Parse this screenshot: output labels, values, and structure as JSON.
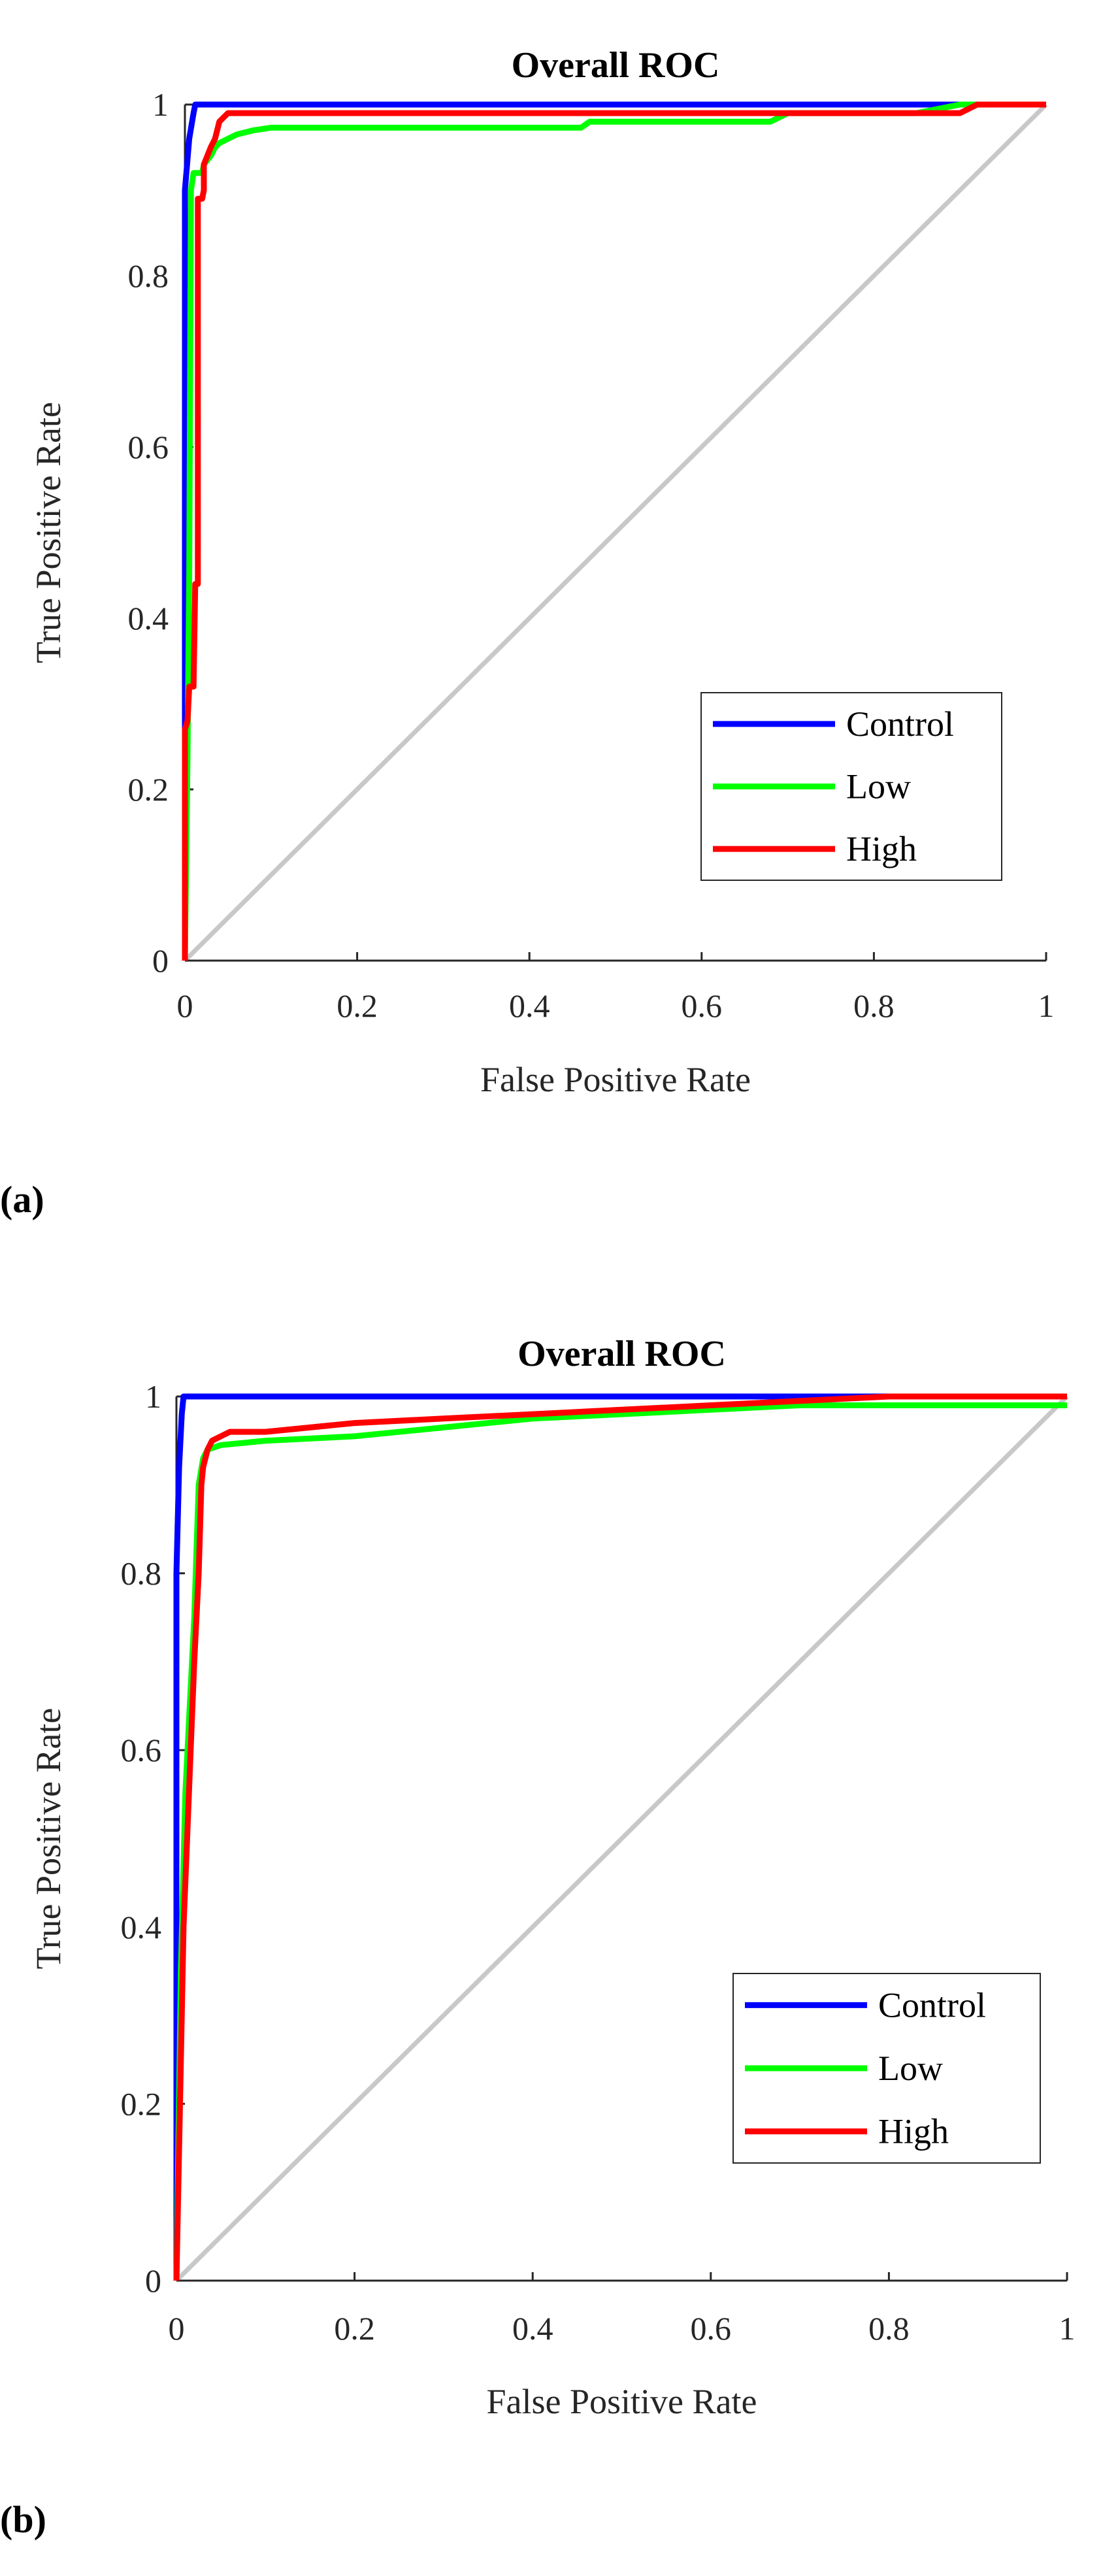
{
  "chart_data": [
    {
      "type": "line",
      "panel_label": "(a)",
      "title": "Overall ROC",
      "xlabel": "False Positive Rate",
      "ylabel": "True Positive Rate",
      "xlim": [
        0,
        1
      ],
      "ylim": [
        0,
        1
      ],
      "xticks": [
        "0",
        "0.2",
        "0.4",
        "0.6",
        "0.8",
        "1"
      ],
      "yticks": [
        "0",
        "0.2",
        "0.4",
        "0.6",
        "0.8",
        "1"
      ],
      "grid": false,
      "legend_position": "bottom-right",
      "reference_line": {
        "x": [
          0,
          1
        ],
        "y": [
          0,
          1
        ],
        "color": "#c8c8c8"
      },
      "series": [
        {
          "name": "Control",
          "color": "#0000ff",
          "x": [
            0,
            0,
            0.005,
            0.01,
            0.012,
            0.85,
            1
          ],
          "y": [
            0,
            0.9,
            0.96,
            0.99,
            1,
            1,
            1
          ]
        },
        {
          "name": "Low",
          "color": "#00ff00",
          "x": [
            0,
            0.003,
            0.005,
            0.007,
            0.01,
            0.012,
            0.02,
            0.022,
            0.03,
            0.035,
            0.04,
            0.05,
            0.06,
            0.08,
            0.1,
            0.46,
            0.47,
            0.68,
            0.7,
            0.85,
            0.9,
            1
          ],
          "y": [
            0,
            0.24,
            0.45,
            0.9,
            0.92,
            0.92,
            0.92,
            0.93,
            0.94,
            0.95,
            0.955,
            0.96,
            0.965,
            0.97,
            0.973,
            0.973,
            0.98,
            0.98,
            0.99,
            0.99,
            1,
            1
          ]
        },
        {
          "name": "High",
          "color": "#ff0000",
          "x": [
            0,
            0,
            0.003,
            0.005,
            0.008,
            0.01,
            0.012,
            0.015,
            0.015,
            0.018,
            0.02,
            0.022,
            0.022,
            0.026,
            0.03,
            0.035,
            0.04,
            0.05,
            0.06,
            0.1,
            0.5,
            0.9,
            0.92,
            1
          ],
          "y": [
            0,
            0.27,
            0.28,
            0.32,
            0.32,
            0.32,
            0.44,
            0.44,
            0.89,
            0.89,
            0.89,
            0.9,
            0.93,
            0.94,
            0.95,
            0.96,
            0.98,
            0.99,
            0.99,
            0.99,
            0.99,
            0.99,
            1,
            1
          ]
        }
      ]
    },
    {
      "type": "line",
      "panel_label": "(b)",
      "title": "Overall ROC",
      "xlabel": "False Positive Rate",
      "ylabel": "True Positive Rate",
      "xlim": [
        0,
        1
      ],
      "ylim": [
        0,
        1
      ],
      "xticks": [
        "0",
        "0.2",
        "0.4",
        "0.6",
        "0.8",
        "1"
      ],
      "yticks": [
        "0",
        "0.2",
        "0.4",
        "0.6",
        "0.8",
        "1"
      ],
      "grid": false,
      "legend_position": "bottom-right",
      "reference_line": {
        "x": [
          0,
          1
        ],
        "y": [
          0,
          1
        ],
        "color": "#c8c8c8"
      },
      "series": [
        {
          "name": "Control",
          "color": "#0000ff",
          "x": [
            0,
            0,
            0.003,
            0.006,
            0.008,
            0.7,
            1
          ],
          "y": [
            0,
            0.8,
            0.92,
            0.98,
            1,
            1,
            1
          ]
        },
        {
          "name": "Low",
          "color": "#00ff00",
          "x": [
            0,
            0.005,
            0.01,
            0.015,
            0.02,
            0.025,
            0.03,
            0.035,
            0.05,
            0.1,
            0.2,
            0.3,
            0.4,
            0.5,
            0.6,
            0.7,
            0.8,
            1
          ],
          "y": [
            0,
            0.35,
            0.55,
            0.65,
            0.75,
            0.9,
            0.93,
            0.94,
            0.945,
            0.95,
            0.955,
            0.965,
            0.975,
            0.98,
            0.985,
            0.99,
            0.99,
            0.99
          ]
        },
        {
          "name": "High",
          "color": "#ff0000",
          "x": [
            0,
            0.004,
            0.008,
            0.012,
            0.016,
            0.02,
            0.025,
            0.028,
            0.03,
            0.035,
            0.04,
            0.05,
            0.06,
            0.1,
            0.2,
            0.3,
            0.4,
            0.5,
            0.6,
            0.7,
            0.8,
            1
          ],
          "y": [
            0,
            0.2,
            0.4,
            0.5,
            0.6,
            0.7,
            0.8,
            0.9,
            0.92,
            0.94,
            0.95,
            0.955,
            0.96,
            0.96,
            0.97,
            0.975,
            0.98,
            0.985,
            0.99,
            0.995,
            1,
            1
          ]
        }
      ]
    }
  ]
}
